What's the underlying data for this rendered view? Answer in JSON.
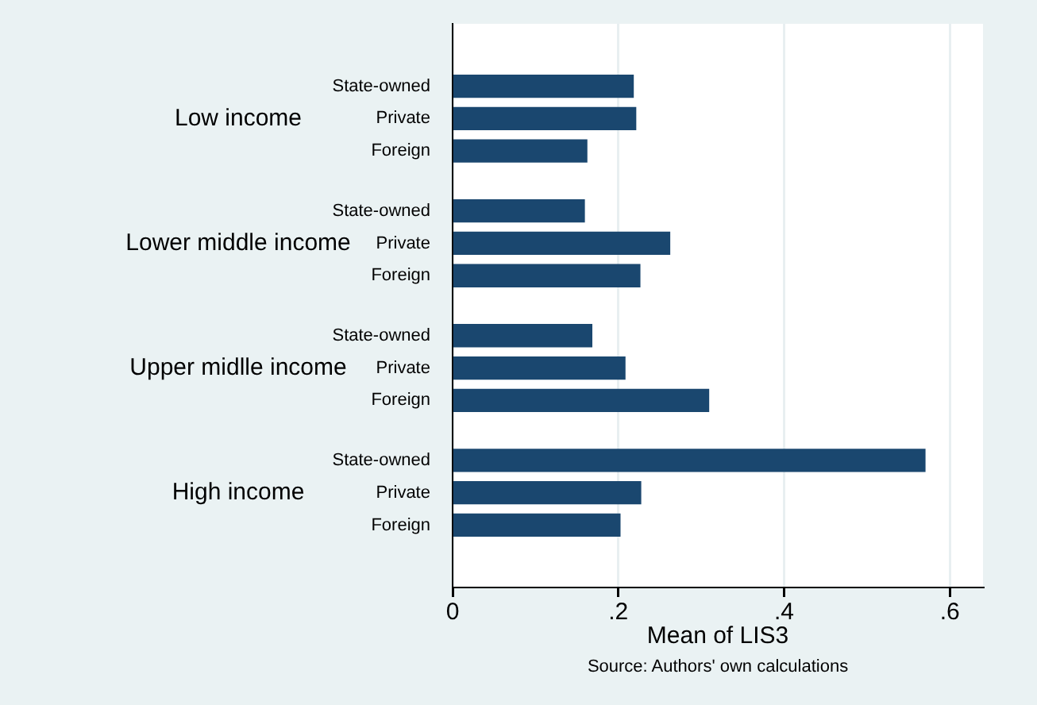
{
  "chart_data": {
    "type": "bar",
    "orientation": "horizontal",
    "xlabel": "Mean of LIS3",
    "categories": [
      "State-owned",
      "Private",
      "Foreign",
      "State-owned",
      "Private",
      "Foreign",
      "State-owned",
      "Private",
      "Foreign",
      "State-owned",
      "Private",
      "Foreign"
    ],
    "values": [
      0.218,
      0.221,
      0.162,
      0.159,
      0.262,
      0.226,
      0.168,
      0.208,
      0.309,
      0.57,
      0.227,
      0.202
    ],
    "color": "#1a476f",
    "xlim": [
      0,
      0.64
    ],
    "xticks": [
      0,
      {
        "value": 0.2,
        "label": ".2"
      },
      {
        "value": 0.4,
        "label": ".4"
      },
      {
        "value": 0.6,
        "label": ".6"
      }
    ],
    "grid": "x",
    "legend": false,
    "annotations": [
      "Low income",
      "Lower middle income",
      "Upper midlle income",
      "High income",
      "Source: Authors' own calculations"
    ]
  }
}
